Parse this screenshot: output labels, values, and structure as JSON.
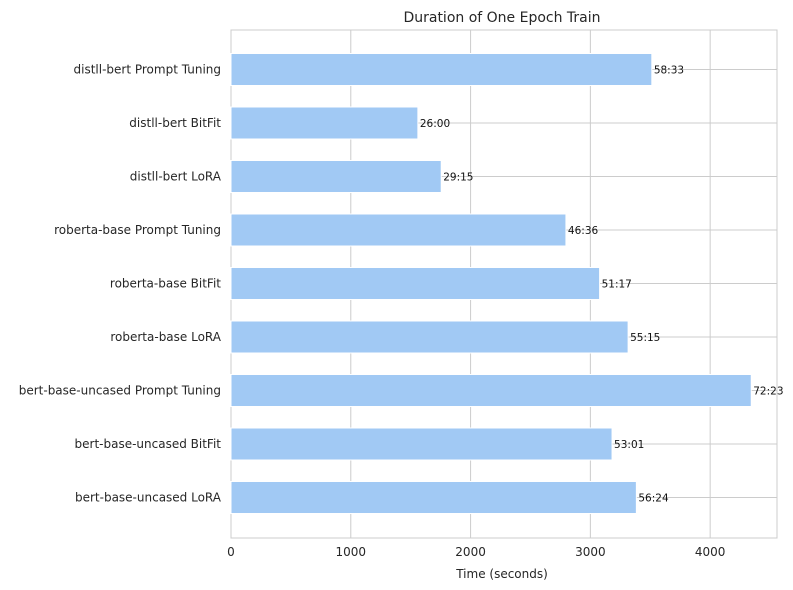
{
  "chart_data": {
    "type": "bar",
    "orientation": "horizontal",
    "title": "Duration of One Epoch Train",
    "xlabel": "Time (seconds)",
    "ylabel": "",
    "xlim": [
      0,
      4558
    ],
    "xticks": [
      0,
      1000,
      2000,
      3000,
      4000
    ],
    "grid": true,
    "bar_color": "#a1c9f4",
    "categories": [
      "distll-bert Prompt Tuning",
      "distll-bert BitFit",
      "distll-bert LoRA",
      "roberta-base Prompt Tuning",
      "roberta-base BitFit",
      "roberta-base LoRA",
      "bert-base-uncased Prompt Tuning",
      "bert-base-uncased BitFit",
      "bert-base-uncased LoRA"
    ],
    "values": [
      3513,
      1560,
      1755,
      2796,
      3077,
      3315,
      4343,
      3181,
      3384
    ],
    "data_labels": [
      "58:33",
      "26:00",
      "29:15",
      "46:36",
      "51:17",
      "55:15",
      "72:23",
      "53:01",
      "56:24"
    ]
  }
}
